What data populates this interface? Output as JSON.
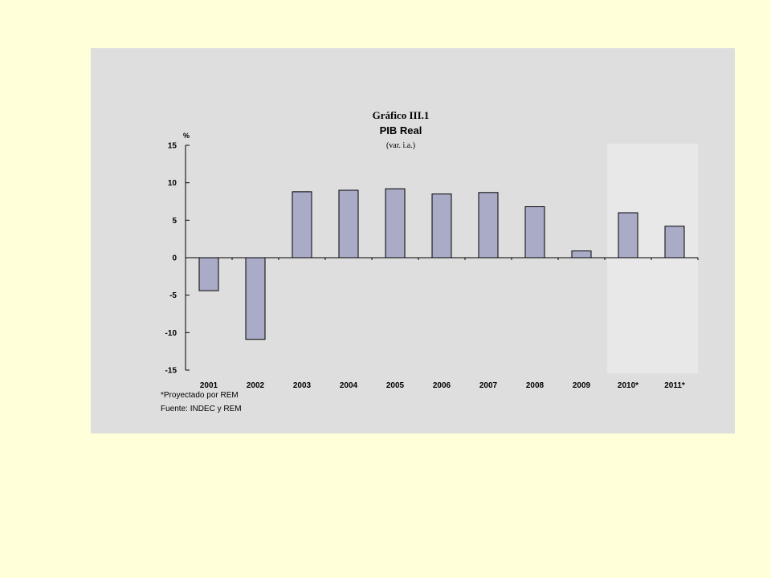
{
  "colors": {
    "page_background": "#ffffd9",
    "panel_background": "#dedede",
    "projection_band": "#e8e8e8",
    "bar_fill": "#a9abc7",
    "bar_stroke": "#000000"
  },
  "chart_data": {
    "type": "bar",
    "title": "Gráfico III.1",
    "subtitle": "PIB Real",
    "subtitle2": "(var. i.a.)",
    "ylabel": "%",
    "xlabel": "",
    "categories": [
      "2001",
      "2002",
      "2003",
      "2004",
      "2005",
      "2006",
      "2007",
      "2008",
      "2009",
      "2010*",
      "2011*"
    ],
    "values": [
      -4.4,
      -10.9,
      8.8,
      9.0,
      9.2,
      8.5,
      8.7,
      6.8,
      0.9,
      6.0,
      4.2
    ],
    "ylim": [
      -15,
      15
    ],
    "yticks": [
      "15",
      "10",
      "5",
      "0",
      "-5",
      "-10",
      "-15"
    ],
    "ytick_values": [
      15,
      10,
      5,
      0,
      -5,
      -10,
      -15
    ],
    "highlighted_categories": [
      "2010*",
      "2011*"
    ],
    "grid": false,
    "legend": "none"
  },
  "notes": {
    "projection_note": "*Proyectado por REM",
    "source": "Fuente: INDEC y REM"
  }
}
